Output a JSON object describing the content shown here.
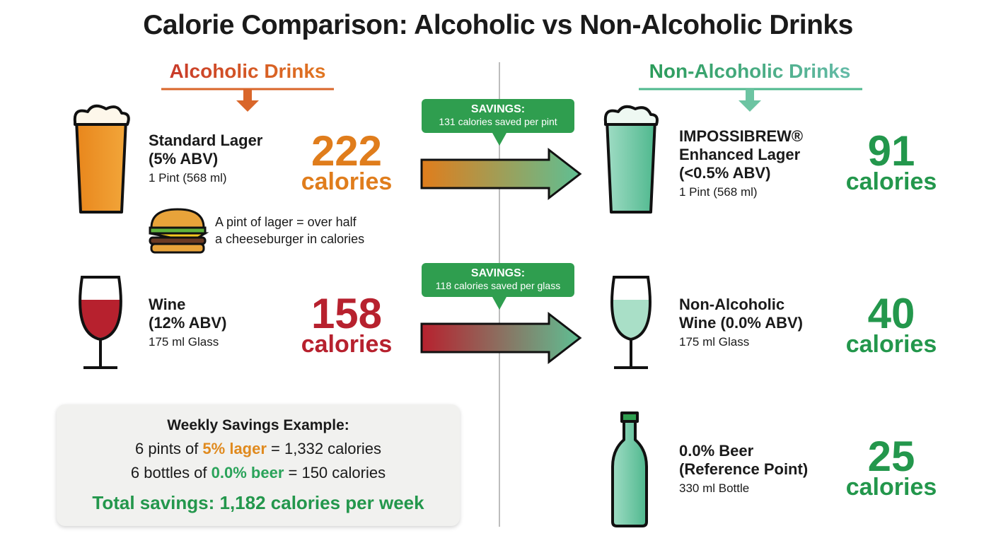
{
  "title": "Calorie Comparison: Alcoholic vs Non-Alcoholic Drinks",
  "alcoholic": {
    "heading": "Alcoholic Drinks",
    "items": [
      {
        "name_lines": [
          "Standard Lager",
          "(5% ABV)"
        ],
        "serving": "1 Pint (568 ml)",
        "calories": 222,
        "unit": "calories"
      },
      {
        "name_lines": [
          "Wine",
          "(12% ABV)"
        ],
        "serving": "175 ml Glass",
        "calories": 158,
        "unit": "calories"
      }
    ],
    "note_lines": [
      "A pint of lager = over half",
      "a cheeseburger in calories"
    ]
  },
  "savings": [
    {
      "label": "SAVINGS:",
      "text": "131 calories saved per pint"
    },
    {
      "label": "SAVINGS:",
      "text": "118 calories saved per glass"
    }
  ],
  "non_alcoholic": {
    "heading": "Non-Alcoholic Drinks",
    "items": [
      {
        "name_lines": [
          "IMPOSSIBREW®",
          "Enhanced Lager",
          "(<0.5% ABV)"
        ],
        "serving": "1 Pint (568 ml)",
        "calories": 91,
        "unit": "calories"
      },
      {
        "name_lines": [
          "Non-Alcoholic",
          "Wine (0.0% ABV)"
        ],
        "serving": "175 ml Glass",
        "calories": 40,
        "unit": "calories"
      },
      {
        "name_lines": [
          "0.0% Beer",
          "(Reference Point)"
        ],
        "serving": "330 ml Bottle",
        "calories": 25,
        "unit": "calories"
      }
    ]
  },
  "weekly": {
    "title": "Weekly Savings Example:",
    "lines": [
      [
        "6 pints of ",
        "5% lager",
        " = 1,332 calories"
      ],
      [
        "6 bottles of ",
        "0.0% beer",
        " = 150 calories"
      ]
    ],
    "total": "Total savings: 1,182 calories per week"
  }
}
